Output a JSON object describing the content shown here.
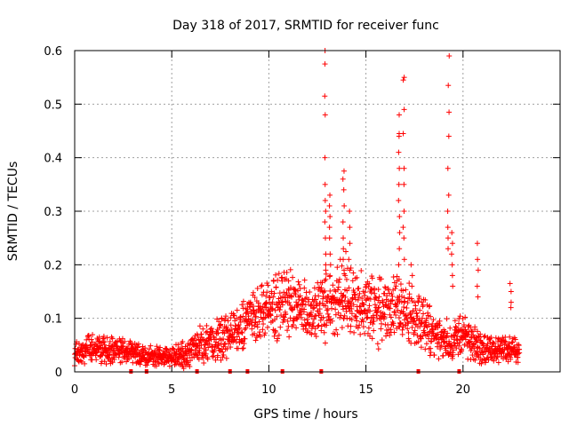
{
  "chart_data": {
    "type": "scatter",
    "title": "Day 318 of 2017, SRMTID for receiver func",
    "xlabel": "GPS time / hours",
    "ylabel": "SRMTID / TECUs",
    "xlim": [
      0,
      25
    ],
    "ylim": [
      0,
      0.6
    ],
    "x_ticks": [
      0,
      5,
      10,
      15,
      20
    ],
    "y_ticks": [
      0,
      0.1,
      0.2,
      0.3,
      0.4,
      0.5,
      0.6
    ],
    "x_tick_labels": [
      "0",
      "5",
      "10",
      "15",
      "20"
    ],
    "y_tick_labels": [
      "0",
      "0.1",
      "0.2",
      "0.3",
      "0.4",
      "0.5",
      "0.6"
    ],
    "grid": true,
    "marker": "+",
    "marker_color": "#ff0000",
    "baseline_markers_x": [
      2.9,
      3.7,
      6.3,
      8.0,
      8.9,
      10.7,
      12.7,
      17.7,
      19.8
    ],
    "envelope": {
      "x": [
        0.0,
        0.5,
        1.0,
        1.5,
        2.0,
        2.5,
        3.0,
        3.5,
        4.0,
        4.5,
        5.0,
        5.5,
        6.0,
        6.5,
        7.0,
        7.5,
        8.0,
        8.5,
        9.0,
        9.5,
        10.0,
        10.5,
        11.0,
        11.5,
        12.0,
        12.5,
        13.0,
        13.5,
        14.0,
        14.5,
        15.0,
        15.5,
        16.0,
        16.5,
        17.0,
        17.5,
        18.0,
        18.5,
        19.0,
        19.5,
        20.0,
        20.5,
        21.0,
        21.5,
        22.0,
        22.5,
        22.9
      ],
      "mean": [
        0.03,
        0.045,
        0.045,
        0.04,
        0.04,
        0.038,
        0.035,
        0.03,
        0.028,
        0.028,
        0.03,
        0.032,
        0.04,
        0.05,
        0.06,
        0.065,
        0.07,
        0.085,
        0.1,
        0.11,
        0.115,
        0.125,
        0.13,
        0.12,
        0.11,
        0.12,
        0.12,
        0.13,
        0.15,
        0.13,
        0.12,
        0.11,
        0.12,
        0.12,
        0.11,
        0.1,
        0.09,
        0.07,
        0.06,
        0.06,
        0.07,
        0.05,
        0.045,
        0.04,
        0.04,
        0.045,
        0.035
      ],
      "spread": [
        0.015,
        0.02,
        0.02,
        0.02,
        0.02,
        0.018,
        0.018,
        0.015,
        0.015,
        0.015,
        0.015,
        0.018,
        0.02,
        0.025,
        0.025,
        0.03,
        0.03,
        0.035,
        0.04,
        0.04,
        0.04,
        0.045,
        0.045,
        0.04,
        0.04,
        0.04,
        0.045,
        0.05,
        0.055,
        0.05,
        0.045,
        0.045,
        0.045,
        0.045,
        0.045,
        0.04,
        0.035,
        0.03,
        0.025,
        0.025,
        0.03,
        0.025,
        0.02,
        0.018,
        0.018,
        0.02,
        0.015
      ]
    },
    "spikes": [
      {
        "x": 12.9,
        "values": [
          0.6,
          0.575,
          0.515,
          0.48,
          0.4,
          0.35,
          0.32,
          0.3,
          0.28,
          0.25,
          0.22,
          0.2,
          0.19
        ]
      },
      {
        "x": 13.15,
        "values": [
          0.33,
          0.31,
          0.29,
          0.27,
          0.25,
          0.22,
          0.2
        ]
      },
      {
        "x": 13.85,
        "values": [
          0.375,
          0.36,
          0.34,
          0.31,
          0.28,
          0.25,
          0.23,
          0.21,
          0.19
        ]
      },
      {
        "x": 14.15,
        "values": [
          0.3,
          0.27,
          0.24,
          0.21,
          0.19
        ]
      },
      {
        "x": 16.7,
        "values": [
          0.48,
          0.445,
          0.44,
          0.41,
          0.38,
          0.35,
          0.32,
          0.29,
          0.26,
          0.23,
          0.2
        ]
      },
      {
        "x": 16.95,
        "values": [
          0.55,
          0.545,
          0.49,
          0.445,
          0.38,
          0.35,
          0.3,
          0.27,
          0.25,
          0.21
        ]
      },
      {
        "x": 17.35,
        "values": [
          0.2,
          0.18,
          0.16
        ]
      },
      {
        "x": 19.25,
        "values": [
          0.59,
          0.535,
          0.485,
          0.44,
          0.38,
          0.33,
          0.3,
          0.27,
          0.25,
          0.23
        ]
      },
      {
        "x": 19.45,
        "values": [
          0.26,
          0.24,
          0.22,
          0.2,
          0.18,
          0.16
        ]
      },
      {
        "x": 20.75,
        "values": [
          0.24,
          0.21,
          0.19,
          0.16,
          0.14
        ]
      },
      {
        "x": 22.45,
        "values": [
          0.165,
          0.15,
          0.13,
          0.12
        ]
      }
    ]
  }
}
